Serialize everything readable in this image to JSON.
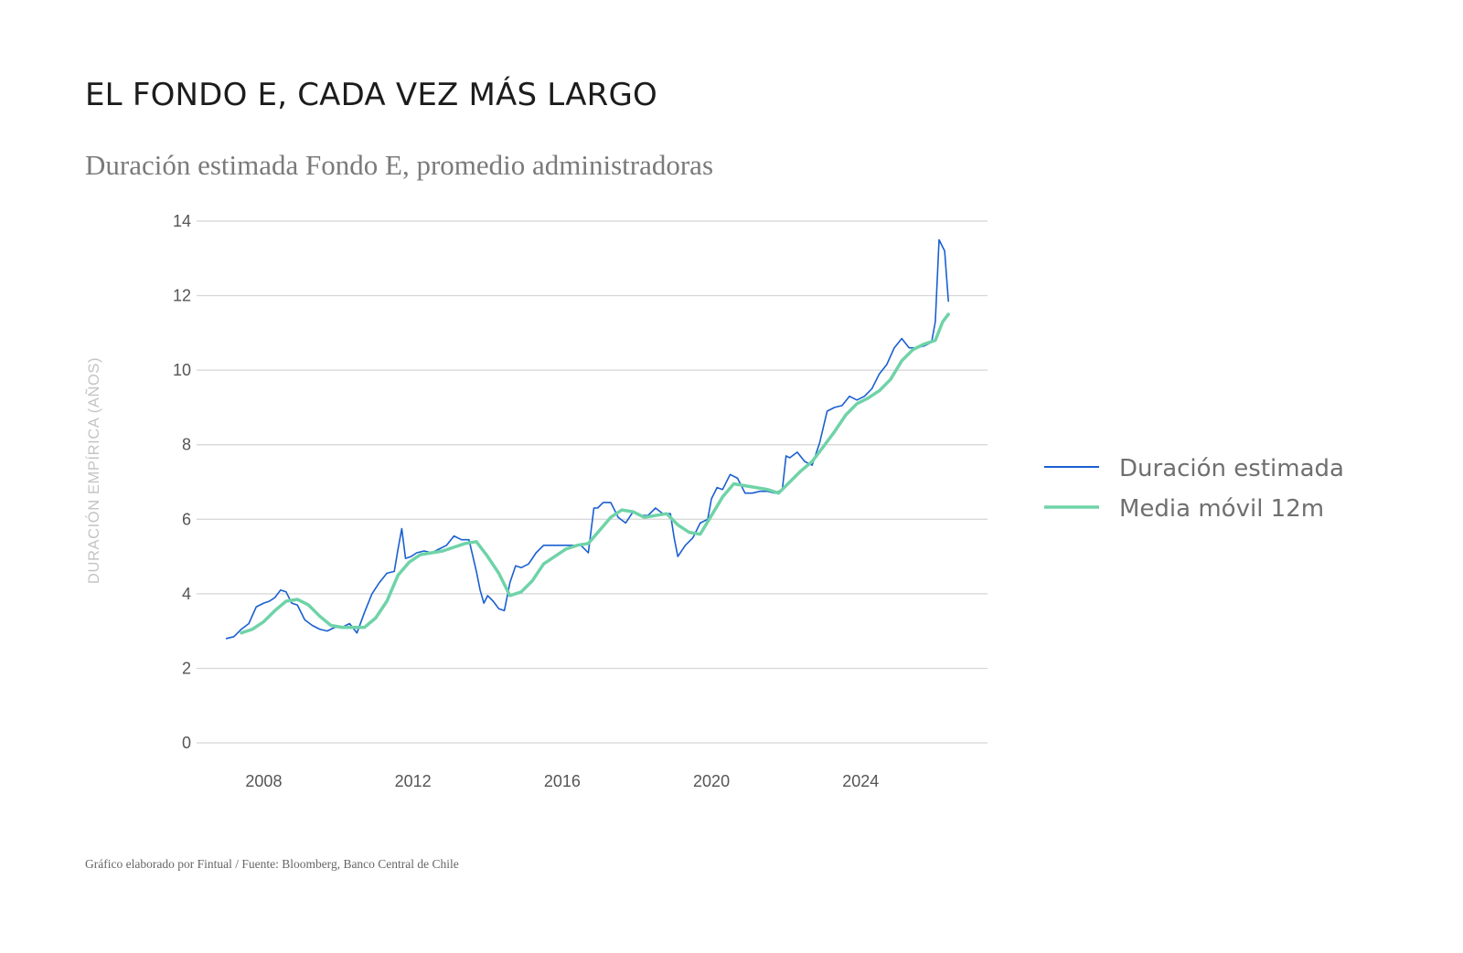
{
  "title": "EL FONDO E, CADA VEZ MÁS LARGO",
  "subtitle": "Duración estimada Fondo E, promedio administradoras",
  "source": "Gráfico elaborado por Fintual / Fuente: Bloomberg, Banco Central de Chile",
  "colors": {
    "estimada": "#1a5fd0",
    "media": "#6fd3a8",
    "grid": "#d5d5d5"
  },
  "chart_data": {
    "type": "line",
    "title": "EL FONDO E, CADA VEZ MÁS LARGO",
    "subtitle": "Duración estimada Fondo E, promedio administradoras",
    "xlabel": "",
    "ylabel": "DURACIÓN EMPÍRICA (AÑOS)",
    "xlim": [
      2006.2,
      2027.4
    ],
    "ylim": [
      0,
      14
    ],
    "x_ticks": [
      2008,
      2012,
      2016,
      2020,
      2024
    ],
    "x_tick_labels": [
      "2008",
      "2012",
      "2016",
      "2020",
      "2024"
    ],
    "y_ticks": [
      0,
      2,
      4,
      6,
      8,
      10,
      12,
      14
    ],
    "y_tick_labels": [
      "0",
      "2",
      "4",
      "6",
      "8",
      "10",
      "12",
      "14"
    ],
    "grid": true,
    "legend_position": "right",
    "series": [
      {
        "name": "Duración estimada",
        "color": "#1a5fd0",
        "x": [
          2007.0,
          2007.2,
          2007.4,
          2007.6,
          2007.8,
          2008.0,
          2008.15,
          2008.3,
          2008.45,
          2008.6,
          2008.75,
          2008.9,
          2009.1,
          2009.3,
          2009.5,
          2009.7,
          2009.9,
          2010.1,
          2010.3,
          2010.5,
          2010.7,
          2010.9,
          2011.1,
          2011.3,
          2011.5,
          2011.6,
          2011.7,
          2011.8,
          2011.95,
          2012.1,
          2012.3,
          2012.5,
          2012.7,
          2012.9,
          2013.1,
          2013.3,
          2013.5,
          2013.7,
          2013.8,
          2013.9,
          2014.0,
          2014.15,
          2014.3,
          2014.45,
          2014.6,
          2014.75,
          2014.9,
          2015.1,
          2015.3,
          2015.5,
          2015.7,
          2015.9,
          2016.1,
          2016.3,
          2016.5,
          2016.7,
          2016.85,
          2016.95,
          2017.1,
          2017.3,
          2017.5,
          2017.7,
          2017.9,
          2018.1,
          2018.3,
          2018.5,
          2018.7,
          2018.9,
          2019.0,
          2019.1,
          2019.3,
          2019.5,
          2019.7,
          2019.9,
          2020.0,
          2020.15,
          2020.3,
          2020.5,
          2020.7,
          2020.9,
          2021.1,
          2021.3,
          2021.5,
          2021.7,
          2021.9,
          2022.0,
          2022.1,
          2022.3,
          2022.5,
          2022.7,
          2022.9,
          2023.1,
          2023.3,
          2023.5,
          2023.7,
          2023.9,
          2024.1,
          2024.3,
          2024.5,
          2024.7,
          2024.9,
          2025.1,
          2025.3,
          2025.5,
          2025.7,
          2025.9,
          2026.0,
          2026.1,
          2026.25,
          2026.35
        ],
        "values": [
          2.8,
          2.85,
          3.05,
          3.2,
          3.65,
          3.75,
          3.8,
          3.9,
          4.1,
          4.05,
          3.75,
          3.7,
          3.3,
          3.15,
          3.05,
          3.0,
          3.1,
          3.1,
          3.2,
          2.95,
          3.5,
          4.0,
          4.3,
          4.55,
          4.6,
          5.2,
          5.75,
          4.95,
          5.0,
          5.1,
          5.15,
          5.1,
          5.2,
          5.3,
          5.55,
          5.45,
          5.45,
          4.6,
          4.1,
          3.75,
          3.95,
          3.8,
          3.6,
          3.55,
          4.3,
          4.75,
          4.7,
          4.8,
          5.1,
          5.3,
          5.3,
          5.3,
          5.3,
          5.3,
          5.3,
          5.1,
          6.3,
          6.3,
          6.45,
          6.45,
          6.05,
          5.9,
          6.2,
          6.1,
          6.1,
          6.3,
          6.15,
          6.15,
          5.5,
          5.0,
          5.3,
          5.5,
          5.9,
          6.0,
          6.55,
          6.85,
          6.8,
          7.2,
          7.1,
          6.7,
          6.7,
          6.75,
          6.75,
          6.7,
          6.8,
          7.7,
          7.65,
          7.8,
          7.55,
          7.45,
          8.05,
          8.9,
          9.0,
          9.05,
          9.3,
          9.2,
          9.3,
          9.5,
          9.9,
          10.15,
          10.6,
          10.85,
          10.6,
          10.6,
          10.65,
          10.75,
          11.3,
          13.5,
          13.2,
          11.85
        ]
      },
      {
        "name": "Media móvil 12m",
        "color": "#6fd3a8",
        "x": [
          2007.4,
          2007.7,
          2008.0,
          2008.3,
          2008.6,
          2008.9,
          2009.2,
          2009.5,
          2009.8,
          2010.1,
          2010.4,
          2010.7,
          2011.0,
          2011.3,
          2011.6,
          2011.9,
          2012.2,
          2012.5,
          2012.8,
          2013.1,
          2013.4,
          2013.7,
          2014.0,
          2014.3,
          2014.6,
          2014.9,
          2015.2,
          2015.5,
          2015.8,
          2016.1,
          2016.4,
          2016.7,
          2017.0,
          2017.3,
          2017.6,
          2017.9,
          2018.2,
          2018.5,
          2018.8,
          2019.1,
          2019.4,
          2019.7,
          2020.0,
          2020.3,
          2020.6,
          2020.9,
          2021.2,
          2021.5,
          2021.8,
          2022.1,
          2022.4,
          2022.7,
          2023.0,
          2023.3,
          2023.6,
          2023.9,
          2024.2,
          2024.5,
          2024.8,
          2025.1,
          2025.4,
          2025.7,
          2026.0,
          2026.2,
          2026.35
        ],
        "values": [
          2.95,
          3.05,
          3.25,
          3.55,
          3.8,
          3.85,
          3.7,
          3.4,
          3.15,
          3.1,
          3.1,
          3.1,
          3.35,
          3.8,
          4.5,
          4.85,
          5.05,
          5.1,
          5.15,
          5.25,
          5.35,
          5.4,
          5.0,
          4.55,
          3.95,
          4.05,
          4.35,
          4.8,
          5.0,
          5.2,
          5.3,
          5.35,
          5.7,
          6.05,
          6.25,
          6.2,
          6.05,
          6.1,
          6.15,
          5.85,
          5.65,
          5.6,
          6.1,
          6.6,
          6.95,
          6.9,
          6.85,
          6.8,
          6.7,
          7.0,
          7.3,
          7.55,
          7.95,
          8.35,
          8.8,
          9.1,
          9.25,
          9.45,
          9.75,
          10.25,
          10.55,
          10.7,
          10.8,
          11.3,
          11.5
        ]
      }
    ]
  }
}
